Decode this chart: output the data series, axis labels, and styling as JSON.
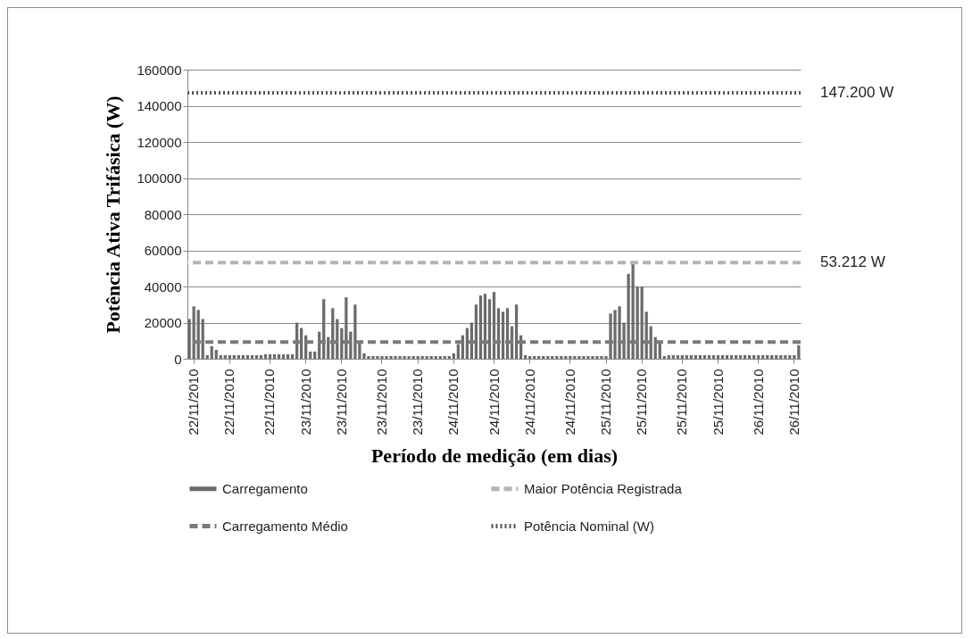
{
  "chart_data": {
    "type": "bar",
    "xlabel": "Período de medição (em dias)",
    "ylabel": "Potência Ativa Trifásica (W)",
    "categories": [
      null,
      "22/11/2010",
      null,
      null,
      null,
      null,
      null,
      null,
      null,
      "22/11/2010",
      null,
      null,
      null,
      null,
      null,
      null,
      null,
      null,
      "22/11/2010",
      null,
      null,
      null,
      null,
      null,
      null,
      null,
      "23/11/2010",
      null,
      null,
      null,
      null,
      null,
      null,
      null,
      "23/11/2010",
      null,
      null,
      null,
      null,
      null,
      null,
      null,
      null,
      "23/11/2010",
      null,
      null,
      null,
      null,
      null,
      null,
      null,
      "23/11/2010",
      null,
      null,
      null,
      null,
      null,
      null,
      null,
      "24/11/2010",
      null,
      null,
      null,
      null,
      null,
      null,
      null,
      null,
      "24/11/2010",
      null,
      null,
      null,
      null,
      null,
      null,
      null,
      "24/11/2010",
      null,
      null,
      null,
      null,
      null,
      null,
      null,
      null,
      "24/11/2010",
      null,
      null,
      null,
      null,
      null,
      null,
      null,
      "25/11/2010",
      null,
      null,
      null,
      null,
      null,
      null,
      null,
      "25/11/2010",
      null,
      null,
      null,
      null,
      null,
      null,
      null,
      null,
      "25/11/2010",
      null,
      null,
      null,
      null,
      null,
      null,
      null,
      "25/11/2010",
      null,
      null,
      null,
      null,
      null,
      null,
      null,
      null,
      "26/11/2010",
      null,
      null,
      null,
      null,
      null,
      null,
      null,
      "26/11/2010",
      null
    ],
    "series": [
      {
        "name": "Carregamento",
        "color": "#6b6b6b",
        "values": [
          22000,
          29000,
          27000,
          22000,
          2000,
          7000,
          5000,
          2000,
          2000,
          2000,
          2000,
          2000,
          2000,
          2000,
          2000,
          2000,
          2000,
          2500,
          2500,
          2500,
          2500,
          2500,
          2500,
          2500,
          20000,
          17000,
          13000,
          4000,
          4000,
          15000,
          33000,
          12000,
          28000,
          22000,
          17000,
          34000,
          15000,
          30000,
          9000,
          3000,
          1500,
          1500,
          1500,
          1500,
          1500,
          1500,
          1500,
          1500,
          1500,
          1500,
          1500,
          1500,
          1500,
          1500,
          1500,
          1500,
          1500,
          1500,
          1500,
          3000,
          8000,
          13000,
          17000,
          20000,
          30000,
          35000,
          36000,
          33000,
          37000,
          28000,
          26000,
          28000,
          18000,
          30000,
          13000,
          2000,
          1500,
          1500,
          1500,
          1500,
          1500,
          1500,
          1500,
          1500,
          1500,
          1500,
          1500,
          1500,
          1500,
          1500,
          1500,
          1500,
          1500,
          1500,
          25000,
          27000,
          29000,
          20000,
          47000,
          53000,
          40000,
          40000,
          26000,
          18000,
          12000,
          10000,
          1500,
          2000,
          2000,
          2000,
          2000,
          2000,
          2000,
          2000,
          2000,
          2000,
          2000,
          2000,
          2000,
          2000,
          2000,
          2000,
          2000,
          2000,
          2000,
          2000,
          2000,
          2000,
          2000,
          2000,
          2000,
          2000,
          2000,
          2000,
          2000,
          2000,
          7500
        ]
      }
    ],
    "ref_lines": [
      {
        "axis": "y",
        "value": 53212,
        "label": "Maior Potência Registrada",
        "color": "#b4b4b4",
        "line_style": "dashed"
      },
      {
        "axis": "y",
        "value": 9200,
        "label": "Carregamento Médio",
        "color": "#7a7a7a",
        "line_style": "dashed"
      },
      {
        "axis": "y",
        "value": 147200,
        "label": "Potência Nominal (W)",
        "color": "#555555",
        "line_style": "dotted"
      }
    ],
    "annotations": [
      "147.200 W",
      "53.212 W"
    ],
    "ylim": [
      0,
      160000
    ],
    "yticks": [
      0,
      20000,
      40000,
      60000,
      80000,
      100000,
      120000,
      140000,
      160000
    ],
    "grid": "y",
    "legend": "bottom"
  }
}
